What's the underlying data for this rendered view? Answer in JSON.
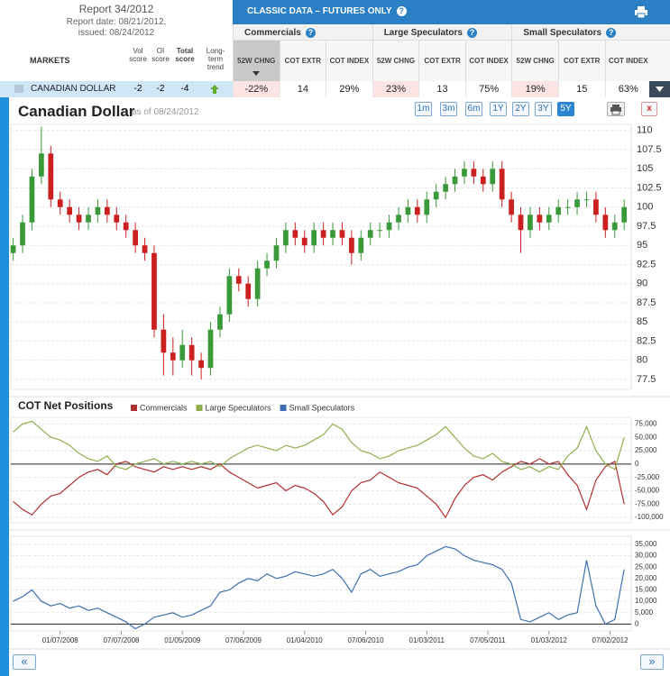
{
  "report": {
    "title": "Report 34/2012",
    "date": "Report date: 08/21/2012,",
    "issued": "issued: 08/24/2012"
  },
  "markets_header": [
    "MARKETS",
    "Vol score",
    "OI score",
    "Total score",
    "Long-term trend"
  ],
  "classic_title": "CLASSIC DATA – FUTURES ONLY",
  "groups": [
    "Commercials",
    "Large Speculators",
    "Small Speculators"
  ],
  "columns": [
    "52W CHNG",
    "COT EXTR",
    "COT INDEX"
  ],
  "row": {
    "market": "CANADIAN DOLLAR",
    "vol": -2,
    "oi": -2,
    "total": -4,
    "values": [
      "-22%",
      14,
      "29%",
      "23%",
      13,
      "75%",
      "19%",
      15,
      "63%"
    ]
  },
  "chart_title": "Canadian Dollar",
  "as_of": "as of 08/24/2012",
  "ranges": [
    "1m",
    "3m",
    "6m",
    "1Y",
    "2Y",
    "3Y",
    "5Y"
  ],
  "close_button": "x",
  "nav": [
    "«",
    "»"
  ],
  "chart_data": [
    {
      "type": "candlestick",
      "up_color": "#3a9a3a",
      "down_color": "#cc2020",
      "grid": true,
      "x": [
        0,
        4,
        8,
        12,
        16,
        20,
        24,
        28,
        32,
        36,
        40,
        44,
        48,
        52,
        56,
        60,
        64,
        68,
        72,
        76,
        80,
        84,
        88,
        92,
        96,
        100,
        104,
        108,
        112,
        116,
        120,
        124,
        128,
        132,
        136,
        140,
        144,
        148,
        152,
        156,
        160,
        164,
        168,
        172,
        176,
        180,
        184,
        188,
        192,
        196,
        200,
        204,
        208,
        212,
        216,
        220,
        224,
        228,
        232,
        236,
        240,
        244,
        248,
        252,
        256,
        260
      ],
      "open": [
        94,
        95,
        98,
        104,
        107,
        101,
        100,
        99,
        98,
        99,
        100,
        99,
        98,
        97,
        95,
        94,
        84,
        81,
        80,
        82,
        80,
        79,
        84,
        86,
        91,
        90,
        88,
        92,
        93,
        95,
        97,
        96,
        95,
        97,
        96,
        97,
        96,
        94,
        96,
        97,
        97,
        98,
        99,
        100,
        99,
        101,
        102,
        103,
        104,
        105,
        104,
        103,
        105,
        101,
        99,
        97,
        99,
        98,
        99,
        100,
        100,
        101,
        101,
        99,
        97,
        98
      ],
      "high": [
        96,
        99,
        105,
        110.5,
        108,
        102,
        101,
        100,
        100,
        101,
        101,
        100,
        99,
        98,
        96,
        95,
        86,
        83,
        84,
        83,
        81,
        85,
        87,
        92,
        92,
        91,
        93,
        94,
        96,
        98,
        98,
        97,
        98,
        98,
        98,
        98,
        97,
        97,
        98,
        98,
        99,
        100,
        101,
        101,
        102,
        103,
        104,
        105,
        106,
        106,
        105,
        106,
        106,
        102,
        100,
        100,
        100,
        100,
        101,
        101,
        102,
        102,
        102,
        100,
        99,
        101
      ],
      "low": [
        93,
        94,
        97,
        103,
        100,
        99,
        98,
        97,
        97,
        98,
        98,
        97,
        96,
        94,
        93,
        83,
        78,
        78,
        79,
        78,
        77.5,
        78,
        83,
        85,
        89,
        87,
        87,
        91,
        92,
        94,
        95,
        94,
        94,
        95,
        95,
        95,
        92.5,
        93,
        95,
        96,
        96,
        97,
        98,
        98,
        98,
        100,
        101,
        102,
        103,
        103,
        102,
        102,
        100,
        98,
        94,
        96,
        97,
        97,
        98,
        99,
        99,
        100,
        98,
        96,
        96,
        97
      ],
      "close": [
        95,
        98,
        104,
        107,
        101,
        100,
        99,
        98,
        99,
        100,
        99,
        98,
        97,
        95,
        94,
        84,
        81,
        80,
        82,
        80,
        79,
        84,
        86,
        91,
        90,
        88,
        92,
        93,
        95,
        97,
        96,
        95,
        97,
        96,
        97,
        96,
        94,
        96,
        97,
        97,
        98,
        99,
        100,
        99,
        101,
        102,
        103,
        104,
        105,
        104,
        103,
        105,
        101,
        99,
        97,
        99,
        98,
        99,
        100,
        100,
        101,
        101,
        99,
        97,
        98,
        100
      ],
      "xlim": [
        -1,
        263
      ],
      "ylim": [
        76.2,
        110.8
      ],
      "yticks": [
        110,
        107.5,
        105,
        102.5,
        100,
        97.5,
        95,
        92.5,
        90,
        87.5,
        85,
        82.5,
        80,
        77.5
      ]
    },
    {
      "type": "line",
      "title": "COT Net Positions",
      "grid": true,
      "x": [
        0,
        4,
        8,
        12,
        16,
        20,
        24,
        28,
        32,
        36,
        40,
        44,
        48,
        52,
        56,
        60,
        64,
        68,
        72,
        76,
        80,
        84,
        88,
        92,
        96,
        100,
        104,
        108,
        112,
        116,
        120,
        124,
        128,
        132,
        136,
        140,
        144,
        148,
        152,
        156,
        160,
        164,
        168,
        172,
        176,
        180,
        184,
        188,
        192,
        196,
        200,
        204,
        208,
        212,
        216,
        220,
        224,
        228,
        232,
        236,
        240,
        244,
        248,
        252,
        256,
        260
      ],
      "series": [
        {
          "name": "Commercials",
          "color": "#b03030",
          "values": [
            -70000,
            -85000,
            -95000,
            -75000,
            -60000,
            -55000,
            -40000,
            -25000,
            -15000,
            -10000,
            -20000,
            0,
            5000,
            -5000,
            -10000,
            -15000,
            -5000,
            -10000,
            -5000,
            -10000,
            -5000,
            -10000,
            0,
            -15000,
            -25000,
            -35000,
            -45000,
            -40000,
            -35000,
            -50000,
            -40000,
            -45000,
            -55000,
            -70000,
            -95000,
            -80000,
            -50000,
            -35000,
            -30000,
            -15000,
            -25000,
            -35000,
            -40000,
            -45000,
            -60000,
            -75000,
            -100000,
            -65000,
            -40000,
            -25000,
            -20000,
            -30000,
            -15000,
            -5000,
            5000,
            0,
            10000,
            0,
            5000,
            -20000,
            -40000,
            -85000,
            -30000,
            -5000,
            5000,
            -75000
          ]
        },
        {
          "name": "Large Speculators",
          "color": "#8faf4e",
          "values": [
            60000,
            75000,
            80000,
            65000,
            50000,
            45000,
            35000,
            20000,
            10000,
            5000,
            15000,
            -5000,
            -10000,
            0,
            5000,
            10000,
            0,
            5000,
            0,
            5000,
            0,
            5000,
            -5000,
            10000,
            20000,
            30000,
            35000,
            30000,
            25000,
            35000,
            30000,
            35000,
            45000,
            55000,
            75000,
            65000,
            40000,
            25000,
            20000,
            10000,
            15000,
            25000,
            30000,
            35000,
            45000,
            55000,
            70000,
            50000,
            30000,
            15000,
            10000,
            20000,
            5000,
            0,
            -10000,
            -5000,
            -15000,
            -5000,
            -10000,
            15000,
            30000,
            70000,
            25000,
            0,
            -10000,
            50000
          ]
        }
      ],
      "xlim": [
        -1,
        263
      ],
      "ylim": [
        -110000,
        87500
      ],
      "yticks": [
        {
          "value": 75000,
          "label": "75,000"
        },
        {
          "value": 50000,
          "label": "50,000"
        },
        {
          "value": 25000,
          "label": "25,000"
        },
        0,
        {
          "value": -25000,
          "label": "-25,000"
        },
        {
          "value": -50000,
          "label": "-50,000"
        },
        {
          "value": -75000,
          "label": "-75,000"
        },
        {
          "value": -100000,
          "label": "-100,000"
        }
      ]
    },
    {
      "type": "line",
      "grid": true,
      "x": [
        0,
        4,
        8,
        12,
        16,
        20,
        24,
        28,
        32,
        36,
        40,
        44,
        48,
        52,
        56,
        60,
        64,
        68,
        72,
        76,
        80,
        84,
        88,
        92,
        96,
        100,
        104,
        108,
        112,
        116,
        120,
        124,
        128,
        132,
        136,
        140,
        144,
        148,
        152,
        156,
        160,
        164,
        168,
        172,
        176,
        180,
        184,
        188,
        192,
        196,
        200,
        204,
        208,
        212,
        216,
        220,
        224,
        228,
        232,
        236,
        240,
        244,
        248,
        252,
        256,
        260
      ],
      "series": [
        {
          "name": "Small Speculators",
          "color": "#3d6fb0",
          "values": [
            10000,
            12000,
            15000,
            10000,
            8000,
            9000,
            7000,
            8000,
            6000,
            7000,
            5000,
            3000,
            1000,
            -2000,
            0,
            3000,
            4000,
            5000,
            3000,
            4000,
            6000,
            8000,
            14000,
            15000,
            18000,
            20000,
            19000,
            22000,
            20000,
            21000,
            23000,
            22000,
            21000,
            22000,
            24000,
            20000,
            14000,
            22000,
            24000,
            21000,
            22000,
            23000,
            25000,
            26000,
            30000,
            32000,
            34000,
            33000,
            30000,
            28000,
            27000,
            26000,
            24000,
            18000,
            2000,
            1000,
            3000,
            5000,
            2000,
            4000,
            5000,
            28000,
            8000,
            0,
            2000,
            24000
          ]
        }
      ],
      "xlim": [
        -1,
        263
      ],
      "ylim": [
        -3000,
        38500
      ],
      "yticks": [
        {
          "value": 35000,
          "label": "35,000"
        },
        {
          "value": 30000,
          "label": "30,000"
        },
        {
          "value": 25000,
          "label": "25,000"
        },
        {
          "value": 20000,
          "label": "20,000"
        },
        {
          "value": 15000,
          "label": "15,000"
        },
        {
          "value": 10000,
          "label": "10,000"
        },
        {
          "value": 5000,
          "label": "5,000"
        },
        0
      ],
      "xticks": [
        {
          "value": 20,
          "label": "01/07/2008"
        },
        {
          "value": 46,
          "label": "07/07/2008"
        },
        {
          "value": 72,
          "label": "01/05/2009"
        },
        {
          "value": 98,
          "label": "07/06/2009"
        },
        {
          "value": 124,
          "label": "01/04/2010"
        },
        {
          "value": 150,
          "label": "07/06/2010"
        },
        {
          "value": 176,
          "label": "01/03/2011"
        },
        {
          "value": 202,
          "label": "07/05/2011"
        },
        {
          "value": 228,
          "label": "01/03/2012"
        },
        {
          "value": 254,
          "label": "07/02/2012"
        }
      ]
    }
  ]
}
